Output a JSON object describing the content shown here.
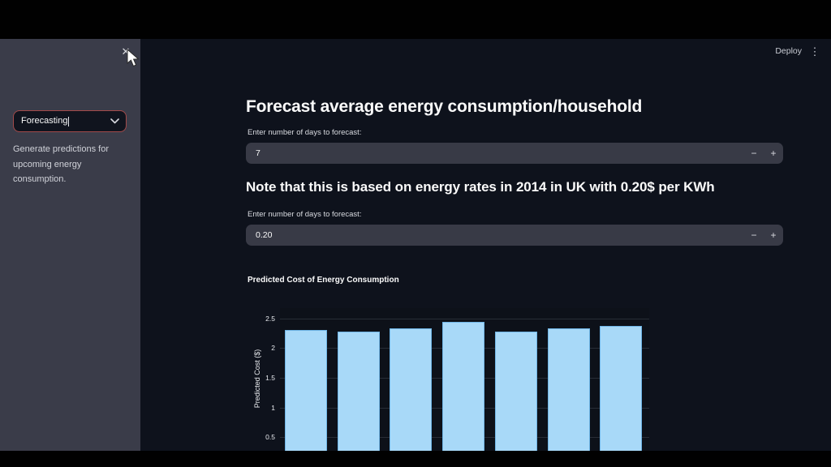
{
  "app": {
    "header": {
      "deploy_label": "Deploy",
      "menu_icon": "vertical-ellipsis",
      "menu_glyph": "⋮",
      "close_icon": "x",
      "close_glyph": "✕"
    },
    "sidebar": {
      "select_value": "Forecasting",
      "caption": "Generate predictions for upcoming energy consumption."
    },
    "main": {
      "heading": "Forecast average energy consumption/household",
      "days_input": {
        "label": "Enter number of days to forecast:",
        "value": "7",
        "decrement": "−",
        "increment": "+"
      },
      "note_heading": "Note that this is based on energy rates in 2014 in UK with 0.20$ per KWh",
      "rate_input": {
        "label": "Enter number of days to forecast:",
        "value": "0.20",
        "decrement": "−",
        "increment": "+"
      }
    }
  },
  "chart_data": {
    "type": "bar",
    "title": "Predicted Cost of Energy Consumption",
    "xlabel": "",
    "ylabel": "Predicted Cost ($)",
    "values": [
      2.31,
      2.28,
      2.33,
      2.44,
      2.28,
      2.33,
      2.38
    ],
    "yticks": [
      0.5,
      1,
      1.5,
      2,
      2.5
    ],
    "ylim": [
      0,
      2.67
    ],
    "grid": true,
    "legend_position": "none",
    "bar_color": "#a8d9f8",
    "bar_edge_color": "#6fb5e6"
  },
  "colors": {
    "frame": "#010101",
    "main_bg": "#0e121c",
    "sidebar_bg": "#3a3c49",
    "input_bg": "#383a46",
    "select_border": "#a34a4a",
    "text_primary": "#fafafa",
    "text_secondary": "#cfd2d9"
  }
}
